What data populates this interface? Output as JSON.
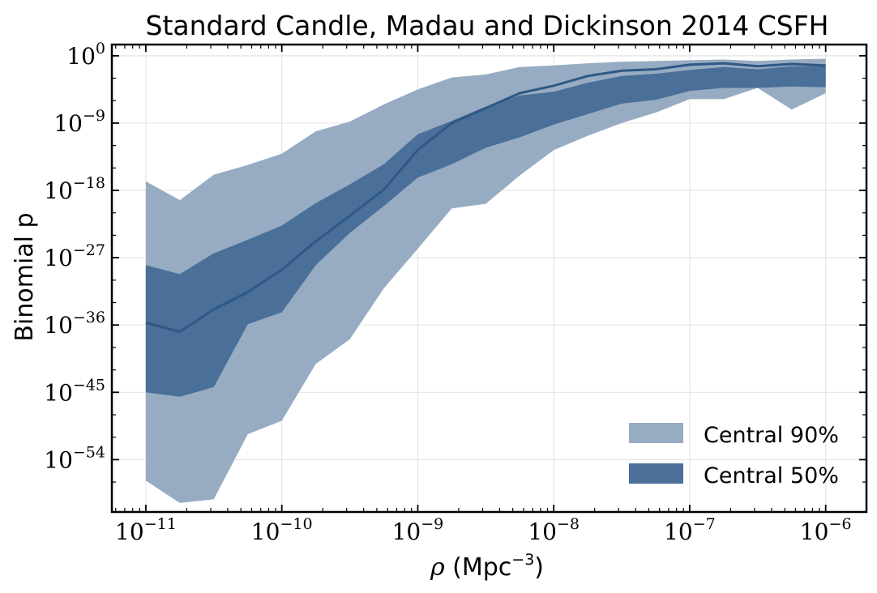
{
  "chart_data": {
    "type": "area",
    "title": "Standard Candle, Madau and Dickinson 2014 CSFH",
    "xlabel_symbol": "ρ",
    "xlabel_unit": "(Mpc",
    "xlabel_exp": "−3",
    "xlabel_close": ")",
    "ylabel": "Binomial p",
    "x_scale": "log",
    "y_scale": "log",
    "xlim_log10": [
      -11.25,
      -5.7
    ],
    "ylim_log10": [
      -61,
      1.5
    ],
    "x_ticks": [
      {
        "base": "10",
        "exp": "−11",
        "value": -11
      },
      {
        "base": "10",
        "exp": "−10",
        "value": -10
      },
      {
        "base": "10",
        "exp": "−9",
        "value": -9
      },
      {
        "base": "10",
        "exp": "−8",
        "value": -8
      },
      {
        "base": "10",
        "exp": "−7",
        "value": -7
      },
      {
        "base": "10",
        "exp": "−6",
        "value": -6
      }
    ],
    "y_ticks": [
      {
        "base": "10",
        "exp": "0",
        "value": 0
      },
      {
        "base": "10",
        "exp": "−9",
        "value": -9
      },
      {
        "base": "10",
        "exp": "−18",
        "value": -18
      },
      {
        "base": "10",
        "exp": "−27",
        "value": -27
      },
      {
        "base": "10",
        "exp": "−36",
        "value": -36
      },
      {
        "base": "10",
        "exp": "−45",
        "value": -45
      },
      {
        "base": "10",
        "exp": "−54",
        "value": -54
      }
    ],
    "grid": true,
    "legend_position": "lower-right",
    "x_log10": [
      -11,
      -10.75,
      -10.5,
      -10.25,
      -10,
      -9.75,
      -9.5,
      -9.25,
      -9,
      -8.75,
      -8.5,
      -8.25,
      -8,
      -7.75,
      -7.5,
      -7.25,
      -7,
      -6.75,
      -6.5,
      -6.25,
      -6
    ],
    "series": [
      {
        "name": "Central 90%",
        "kind": "band",
        "color": "#97acc2",
        "lower_log10": [
          -56.8,
          -59.8,
          -59.3,
          -50.6,
          -48.8,
          -41.2,
          -37.9,
          -31.1,
          -25.8,
          -20.4,
          -19.8,
          -16.0,
          -12.6,
          -10.7,
          -9.0,
          -7.6,
          -5.8,
          -5.8,
          -4.3,
          -7.2,
          -5.0
        ],
        "upper_log10": [
          -16.8,
          -19.3,
          -15.9,
          -14.6,
          -13.1,
          -10.1,
          -8.8,
          -6.5,
          -4.5,
          -2.9,
          -2.5,
          -1.5,
          -1.3,
          -1.0,
          -0.8,
          -0.7,
          -0.6,
          -0.5,
          -0.7,
          -0.5,
          -0.4
        ]
      },
      {
        "name": "Central 50%",
        "kind": "band",
        "color": "#4a6f98",
        "lower_log10": [
          -45.0,
          -45.6,
          -44.3,
          -35.9,
          -34.3,
          -28.0,
          -23.7,
          -20.1,
          -16.3,
          -14.5,
          -12.3,
          -10.9,
          -9.2,
          -7.8,
          -6.4,
          -5.9,
          -4.7,
          -4.3,
          -4.3,
          -4.1,
          -4.2
        ],
        "upper_log10": [
          -28.0,
          -29.2,
          -26.4,
          -24.6,
          -22.7,
          -19.7,
          -17.2,
          -14.5,
          -10.5,
          -8.7,
          -6.8,
          -5.3,
          -4.8,
          -3.6,
          -2.7,
          -2.4,
          -1.9,
          -1.5,
          -1.8,
          -1.4,
          -1.4
        ]
      },
      {
        "name": "",
        "kind": "line",
        "color": "#2f5885",
        "values_log10": [
          -35.7,
          -36.9,
          -33.9,
          -31.6,
          -28.6,
          -24.8,
          -21.4,
          -17.9,
          -12.6,
          -9.0,
          -7.0,
          -5.0,
          -4.0,
          -2.7,
          -2.0,
          -1.8,
          -1.2,
          -1.0,
          -1.4,
          -1.1,
          -1.3
        ]
      }
    ]
  }
}
